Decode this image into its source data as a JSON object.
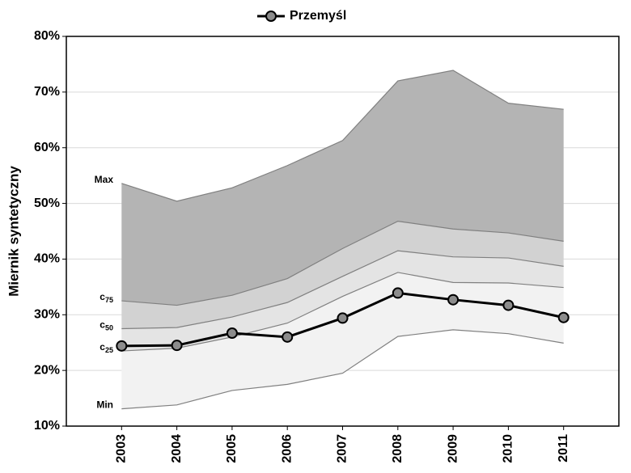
{
  "chart_data": {
    "type": "band-line",
    "ylabel": "Miernik syntetyczny",
    "x": [
      2003,
      2004,
      2005,
      2006,
      2007,
      2008,
      2009,
      2010,
      2011
    ],
    "xlim": [
      2002,
      2012
    ],
    "xticks": [
      2003,
      2004,
      2005,
      2006,
      2007,
      2008,
      2009,
      2010,
      2011
    ],
    "ylim": [
      10,
      80
    ],
    "yticks": [
      {
        "value": 10,
        "label": "10%"
      },
      {
        "value": 20,
        "label": "20%"
      },
      {
        "value": 30,
        "label": "30%"
      },
      {
        "value": 40,
        "label": "40%"
      },
      {
        "value": 50,
        "label": "50%"
      },
      {
        "value": 60,
        "label": "60%"
      },
      {
        "value": 70,
        "label": "70%"
      },
      {
        "value": 80,
        "label": "80%"
      }
    ],
    "grid": true,
    "bands": [
      {
        "name": "Max",
        "color": "#b4b4b4",
        "values": [
          53.6,
          50.4,
          52.8,
          56.8,
          61.3,
          72.0,
          73.9,
          68.0,
          66.9
        ]
      },
      {
        "name": "c",
        "sub": "75",
        "color": "#d2d2d2",
        "values": [
          32.5,
          31.7,
          33.5,
          36.5,
          41.9,
          46.8,
          45.4,
          44.7,
          43.2
        ]
      },
      {
        "name": "c",
        "sub": "50",
        "color": "#e4e4e4",
        "values": [
          27.5,
          27.7,
          29.6,
          32.2,
          36.9,
          41.5,
          40.4,
          40.2,
          38.7
        ]
      },
      {
        "name": "c",
        "sub": "25",
        "color": "#f2f2f2",
        "values": [
          23.5,
          24.0,
          26.0,
          28.5,
          33.3,
          37.6,
          35.8,
          35.7,
          34.9
        ]
      },
      {
        "name": "Min",
        "color": "#f2f2f2",
        "values": [
          13.1,
          13.8,
          16.4,
          17.5,
          19.5,
          26.1,
          27.3,
          26.6,
          24.9
        ]
      }
    ],
    "series": [
      {
        "name": "Przemyśl",
        "color": "#000000",
        "marker_color": "#8c8c8c",
        "values": [
          24.4,
          24.5,
          26.7,
          26.0,
          29.4,
          33.9,
          32.7,
          31.7,
          29.5
        ]
      }
    ]
  }
}
